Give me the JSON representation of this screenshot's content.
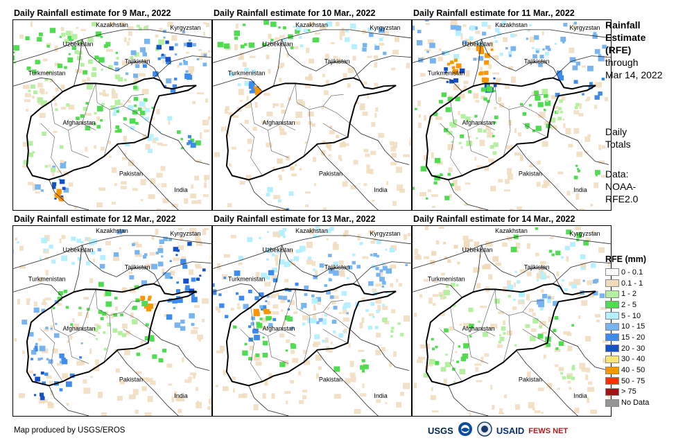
{
  "panels": [
    {
      "title": "Daily Rainfall estimate for 9 Mar., 2022"
    },
    {
      "title": "Daily Rainfall estimate for 10 Mar., 2022"
    },
    {
      "title": "Daily Rainfall estimate for 11 Mar., 2022"
    },
    {
      "title": "Daily Rainfall estimate for 12 Mar., 2022"
    },
    {
      "title": "Daily Rainfall estimate for 13 Mar., 2022"
    },
    {
      "title": "Daily Rainfall estimate for 14 Mar., 2022"
    }
  ],
  "map_labels": {
    "kazakhstan": "Kazakhstan",
    "kyrgyzstan": "Kyrgyzstan",
    "uzbekistan": "Uzbekistan",
    "tajikistan": "Tajikistan",
    "turkmenistan": "Turkmenistan",
    "afghanistan": "Afghanistan",
    "pakistan": "Pakistan",
    "india": "India"
  },
  "side": {
    "title_1": "Rainfall",
    "title_2": "Estimate",
    "title_3": "(RFE)",
    "through": "through",
    "date": "Mar 14, 2022",
    "daily_1": "Daily",
    "daily_2": "Totals",
    "data_1": "Data:",
    "data_2": "NOAA-",
    "data_3": "RFE2.0"
  },
  "legend": {
    "title": "RFE (mm)",
    "items": [
      {
        "label": "0 - 0.1",
        "color": "#ffffff"
      },
      {
        "label": "0.1 - 1",
        "color": "#f0dcbc"
      },
      {
        "label": "1 - 2",
        "color": "#b4f0a0"
      },
      {
        "label": "2 - 5",
        "color": "#50dc50"
      },
      {
        "label": "5 - 10",
        "color": "#b4f0ff"
      },
      {
        "label": "10 - 15",
        "color": "#78b4f0"
      },
      {
        "label": "15 - 20",
        "color": "#3c8cf0"
      },
      {
        "label": "20 - 30",
        "color": "#1450c8"
      },
      {
        "label": "30 - 40",
        "color": "#fae678"
      },
      {
        "label": "40 - 50",
        "color": "#fa9600"
      },
      {
        "label": "50 - 75",
        "color": "#fa3200"
      },
      {
        "label": "> 75",
        "color": "#a01414"
      },
      {
        "label": "No Data",
        "color": "#969696"
      }
    ]
  },
  "credit": "Map produced by USGS/EROS",
  "logos": {
    "usgs": "USGS",
    "usaid": "USAID",
    "fewsnet": "FEWS NET"
  }
}
